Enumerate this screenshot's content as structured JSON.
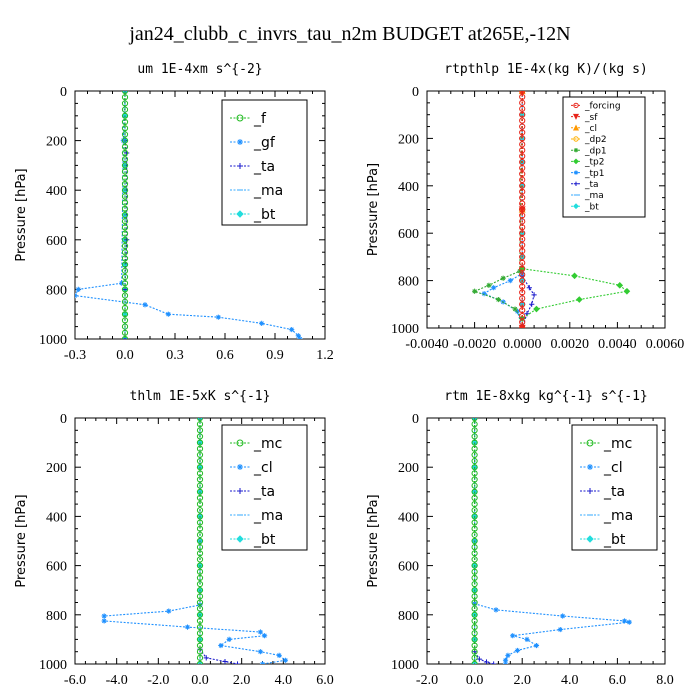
{
  "figure_title": "jan24_clubb_c_invrs_tau_n2m  BUDGET at265E,-12N",
  "colors": {
    "f": "#22bb22",
    "gf": "#1e90ff",
    "ta": "#1a1acc",
    "ma": "#33aaff",
    "bt": "#22dddd",
    "forcing": "#e8251b",
    "mc": "#22bb22",
    "cl": "#1e90ff",
    "dp1": "#33aa33",
    "tp2": "#33cc33",
    "tp1": "#1e90ff",
    "orange": "#ff9900"
  },
  "chart_data": [
    {
      "type": "line",
      "title": "um   1E-4xm s^{-2}",
      "ylabel": "Pressure  [hPa]",
      "xlim": [
        -0.3,
        1.2
      ],
      "ylim": [
        1000,
        0
      ],
      "xticks": [
        "-0.3",
        "0.0",
        "0.3",
        "0.6",
        "0.9",
        "1.2"
      ],
      "yticks": [
        "0",
        "200",
        "400",
        "600",
        "800",
        "1000"
      ],
      "legend_position": "upper-right",
      "series": [
        {
          "name": "_f",
          "color": "#22bb22",
          "marker": "circle",
          "x": [
            0,
            0,
            0,
            0,
            0,
            0,
            0,
            0,
            0,
            0,
            0,
            0,
            0,
            0,
            0,
            0,
            0,
            0,
            0,
            0,
            0,
            0,
            0,
            0,
            0,
            0,
            0,
            0,
            0,
            0,
            0,
            0,
            0,
            0,
            0,
            0,
            0,
            0,
            0,
            0,
            0
          ],
          "y": [
            0,
            25,
            50,
            75,
            100,
            125,
            150,
            175,
            200,
            225,
            250,
            275,
            300,
            325,
            350,
            375,
            400,
            425,
            450,
            475,
            500,
            525,
            550,
            575,
            600,
            625,
            650,
            675,
            700,
            725,
            750,
            775,
            800,
            825,
            850,
            875,
            900,
            925,
            950,
            975,
            1000
          ]
        },
        {
          "name": "_gf",
          "color": "#1e90ff",
          "marker": "star",
          "x": [
            0,
            -0.01,
            -0.02,
            -0.28,
            -0.3,
            0.12,
            0.26,
            0.56,
            0.82,
            1.0,
            1.04,
            1.05
          ],
          "y": [
            0,
            200,
            775,
            800,
            825,
            862,
            900,
            912,
            937,
            962,
            987,
            1000
          ]
        },
        {
          "name": "_ta",
          "color": "#1a1acc",
          "marker": "plus",
          "x": [
            0.0,
            0.0,
            0.01,
            0.01,
            0.0,
            0.0
          ],
          "y": [
            0,
            200,
            250,
            600,
            800,
            1000
          ]
        },
        {
          "name": "_ma",
          "color": "#33aaff",
          "marker": "dash",
          "x": [
            0,
            0,
            0
          ],
          "y": [
            0,
            500,
            1000
          ]
        },
        {
          "name": "_bt",
          "color": "#22dddd",
          "marker": "diamond",
          "x": [
            0,
            0,
            0,
            0,
            0,
            0,
            0,
            0,
            0,
            0,
            0
          ],
          "y": [
            0,
            100,
            200,
            300,
            400,
            500,
            600,
            700,
            800,
            900,
            1000
          ]
        }
      ]
    },
    {
      "type": "line",
      "title": "rtpthlp   1E-4x(kg K)/(kg s)",
      "ylabel": "Pressure  [hPa]",
      "xlim": [
        -0.004,
        0.006
      ],
      "ylim": [
        1000,
        0
      ],
      "xticks": [
        "-0.0040",
        "-0.0020",
        "0.0000",
        "0.0020",
        "0.0040",
        "0.0060"
      ],
      "yticks": [
        "0",
        "200",
        "400",
        "600",
        "800",
        "1000"
      ],
      "legend_position": "upper-right",
      "series": [
        {
          "name": "_forcing",
          "color": "#e8251b",
          "marker": "circle",
          "x": [
            0,
            0,
            0,
            0,
            0,
            0,
            0,
            0,
            0,
            0,
            0,
            0,
            0,
            0,
            0,
            0,
            0,
            0,
            0,
            0,
            0,
            0,
            0,
            0,
            0,
            0,
            0,
            0,
            0,
            0,
            0,
            0,
            0,
            0,
            0,
            0,
            0,
            0,
            0,
            0,
            0
          ],
          "y": [
            0,
            25,
            50,
            75,
            100,
            125,
            150,
            175,
            200,
            225,
            250,
            275,
            300,
            325,
            350,
            375,
            400,
            425,
            450,
            475,
            500,
            525,
            550,
            575,
            600,
            625,
            650,
            675,
            700,
            725,
            750,
            775,
            800,
            825,
            850,
            875,
            900,
            925,
            950,
            975,
            1000
          ]
        },
        {
          "name": "_sf",
          "color": "#e8251b",
          "marker": "triangle-down",
          "x": [
            0,
            0,
            0
          ],
          "y": [
            0,
            500,
            1000
          ]
        },
        {
          "name": "_cl",
          "color": "#ff9900",
          "marker": "triangle",
          "x": [
            0,
            0,
            0
          ],
          "y": [
            0,
            500,
            1000
          ]
        },
        {
          "name": "_dp2",
          "color": "#ffb000",
          "marker": "circle-open",
          "x": [
            0,
            0,
            0
          ],
          "y": [
            0,
            500,
            1000
          ]
        },
        {
          "name": "_dp1",
          "color": "#33aa33",
          "marker": "star",
          "x": [
            0,
            -0.0001,
            -0.0008,
            -0.0014,
            -0.002,
            -0.001,
            -0.0003,
            0,
            0
          ],
          "y": [
            0,
            760,
            790,
            820,
            845,
            880,
            920,
            960,
            1000
          ]
        },
        {
          "name": "_tp2",
          "color": "#33cc33",
          "marker": "diamond",
          "x": [
            0,
            0,
            0.0022,
            0.0041,
            0.0044,
            0.0024,
            0.0006,
            0,
            0
          ],
          "y": [
            0,
            750,
            780,
            820,
            845,
            880,
            920,
            960,
            1000
          ]
        },
        {
          "name": "_tp1",
          "color": "#1e90ff",
          "marker": "star",
          "x": [
            0,
            0,
            -0.0005,
            -0.0012,
            -0.0016,
            -0.0008,
            -0.0002,
            0
          ],
          "y": [
            0,
            770,
            800,
            830,
            855,
            890,
            930,
            1000
          ]
        },
        {
          "name": "_ta",
          "color": "#1a1acc",
          "marker": "plus",
          "x": [
            0,
            0,
            0.0003,
            0.0005,
            0.0004,
            0.0002,
            0
          ],
          "y": [
            0,
            780,
            830,
            860,
            900,
            940,
            1000
          ]
        },
        {
          "name": "_ma",
          "color": "#33aaff",
          "marker": "dash",
          "x": [
            0,
            0,
            0
          ],
          "y": [
            0,
            500,
            1000
          ]
        },
        {
          "name": "_bt",
          "color": "#22dddd",
          "marker": "diamond",
          "x": [
            0,
            0,
            0,
            0,
            0,
            0,
            0,
            0,
            0,
            0,
            0
          ],
          "y": [
            0,
            100,
            200,
            300,
            400,
            500,
            600,
            700,
            800,
            900,
            1000
          ]
        }
      ]
    },
    {
      "type": "line",
      "title": "thlm   1E-5xK s^{-1}",
      "ylabel": "Pressure  [hPa]",
      "xlim": [
        -6.0,
        6.0
      ],
      "ylim": [
        1000,
        0
      ],
      "xticks": [
        "-6.0",
        "-4.0",
        "-2.0",
        "0.0",
        "2.0",
        "4.0",
        "6.0"
      ],
      "yticks": [
        "0",
        "200",
        "400",
        "600",
        "800",
        "1000"
      ],
      "legend_position": "upper-right",
      "series": [
        {
          "name": "_mc",
          "color": "#22bb22",
          "marker": "circle",
          "x": [
            0,
            0,
            0,
            0,
            0,
            0,
            0,
            0,
            0,
            0,
            0,
            0,
            0,
            0,
            0,
            0,
            0,
            0,
            0,
            0,
            0,
            0,
            0,
            0,
            0,
            0,
            0,
            0,
            0,
            0,
            0,
            0,
            0,
            0,
            0,
            0,
            0,
            0,
            0,
            0,
            0
          ],
          "y": [
            0,
            25,
            50,
            75,
            100,
            125,
            150,
            175,
            200,
            225,
            250,
            275,
            300,
            325,
            350,
            375,
            400,
            425,
            450,
            475,
            500,
            525,
            550,
            575,
            600,
            625,
            650,
            675,
            700,
            725,
            750,
            775,
            800,
            825,
            850,
            875,
            900,
            925,
            950,
            975,
            1000
          ]
        },
        {
          "name": "_cl",
          "color": "#1e90ff",
          "marker": "star",
          "x": [
            0,
            0,
            -1.5,
            -4.6,
            -4.6,
            -0.6,
            2.9,
            3.1,
            1.4,
            1.0,
            2.9,
            3.8,
            4.1,
            3.0
          ],
          "y": [
            0,
            760,
            785,
            805,
            825,
            850,
            870,
            885,
            900,
            925,
            950,
            965,
            985,
            1000
          ]
        },
        {
          "name": "_ta",
          "color": "#1a1acc",
          "marker": "plus",
          "x": [
            0,
            0,
            0.3,
            1.2,
            1.8
          ],
          "y": [
            0,
            940,
            975,
            990,
            1000
          ]
        },
        {
          "name": "_ma",
          "color": "#33aaff",
          "marker": "dash",
          "x": [
            0,
            0,
            0
          ],
          "y": [
            0,
            500,
            1000
          ]
        },
        {
          "name": "_bt",
          "color": "#22dddd",
          "marker": "diamond",
          "x": [
            0,
            0,
            0,
            0,
            0,
            0,
            0,
            0,
            0,
            0,
            0
          ],
          "y": [
            0,
            100,
            200,
            300,
            400,
            500,
            600,
            700,
            800,
            900,
            1000
          ]
        }
      ]
    },
    {
      "type": "line",
      "title": "rtm   1E-8xkg kg^{-1} s^{-1}",
      "ylabel": "Pressure  [hPa]",
      "xlim": [
        -2.0,
        8.0
      ],
      "ylim": [
        1000,
        0
      ],
      "xticks": [
        "-2.0",
        "0.0",
        "2.0",
        "4.0",
        "6.0",
        "8.0"
      ],
      "yticks": [
        "0",
        "200",
        "400",
        "600",
        "800",
        "1000"
      ],
      "legend_position": "upper-right",
      "series": [
        {
          "name": "_mc",
          "color": "#22bb22",
          "marker": "circle",
          "x": [
            0,
            0,
            0,
            0,
            0,
            0,
            0,
            0,
            0,
            0,
            0,
            0,
            0,
            0,
            0,
            0,
            0,
            0,
            0,
            0,
            0,
            0,
            0,
            0,
            0,
            0,
            0,
            0,
            0,
            0,
            0,
            0,
            0,
            0,
            0,
            0,
            0,
            0,
            0,
            0,
            0
          ],
          "y": [
            0,
            25,
            50,
            75,
            100,
            125,
            150,
            175,
            200,
            225,
            250,
            275,
            300,
            325,
            350,
            375,
            400,
            425,
            450,
            475,
            500,
            525,
            550,
            575,
            600,
            625,
            650,
            675,
            700,
            725,
            750,
            775,
            800,
            825,
            850,
            875,
            900,
            925,
            950,
            975,
            1000
          ]
        },
        {
          "name": "_cl",
          "color": "#1e90ff",
          "marker": "star",
          "x": [
            0,
            0,
            0.9,
            3.7,
            6.3,
            6.5,
            3.6,
            1.6,
            2.2,
            2.6,
            1.8,
            1.4,
            1.3,
            1.3
          ],
          "y": [
            0,
            755,
            780,
            805,
            825,
            830,
            860,
            885,
            900,
            925,
            945,
            965,
            985,
            1000
          ]
        },
        {
          "name": "_ta",
          "color": "#1a1acc",
          "marker": "plus",
          "x": [
            0,
            0,
            0.2,
            0.5,
            0.8
          ],
          "y": [
            0,
            950,
            980,
            992,
            1000
          ]
        },
        {
          "name": "_ma",
          "color": "#33aaff",
          "marker": "dash",
          "x": [
            0,
            0,
            0
          ],
          "y": [
            0,
            500,
            1000
          ]
        },
        {
          "name": "_bt",
          "color": "#22dddd",
          "marker": "diamond",
          "x": [
            0,
            0,
            0,
            0,
            0,
            0,
            0,
            0,
            0,
            0,
            0
          ],
          "y": [
            0,
            100,
            200,
            300,
            400,
            500,
            600,
            700,
            800,
            900,
            1000
          ]
        }
      ]
    }
  ]
}
